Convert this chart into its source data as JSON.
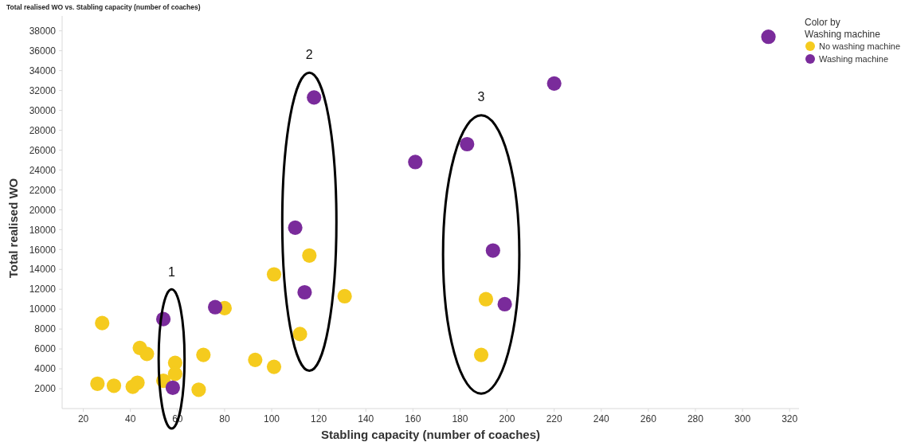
{
  "chart_data": {
    "type": "scatter",
    "title": "Total realised WO vs. Stabling capacity (number of coaches)",
    "xlabel": "Stabling capacity (number of coaches)",
    "ylabel": "Total realised WO",
    "legend_title": "Color by Washing machine",
    "legend": "top right",
    "marker": "circle",
    "grid": false,
    "xlim": [
      11,
      324
    ],
    "xticks": [
      20,
      40,
      60,
      80,
      100,
      120,
      140,
      160,
      180,
      200,
      220,
      240,
      260,
      280,
      300,
      320
    ],
    "ylim": [
      0,
      39500
    ],
    "yticks": [
      2000,
      4000,
      6000,
      8000,
      10000,
      12000,
      14000,
      16000,
      18000,
      20000,
      22000,
      24000,
      26000,
      28000,
      30000,
      32000,
      34000,
      36000,
      38000
    ],
    "series": [
      {
        "name": "No washing machine",
        "color": "#f5cb1e",
        "x": [
          26,
          33,
          41,
          43,
          28,
          44,
          47,
          59,
          59,
          54,
          69,
          71,
          80,
          93,
          101,
          101,
          112,
          116,
          131,
          189,
          191
        ],
        "values": [
          2500,
          2300,
          2200,
          2600,
          8600,
          6100,
          5500,
          4600,
          3500,
          2800,
          1900,
          5400,
          10100,
          4900,
          4200,
          13500,
          7500,
          15400,
          11300,
          5400,
          11000
        ]
      },
      {
        "name": "Washing machine",
        "color": "#7a2b9b",
        "x": [
          54,
          58,
          76,
          118,
          110,
          114,
          161,
          183,
          194,
          199,
          220,
          311
        ],
        "values": [
          9000,
          2100,
          10200,
          31300,
          18200,
          11700,
          24800,
          26600,
          15900,
          10500,
          32700,
          37400
        ]
      }
    ],
    "annotations": [
      "1",
      "2",
      "3"
    ]
  }
}
